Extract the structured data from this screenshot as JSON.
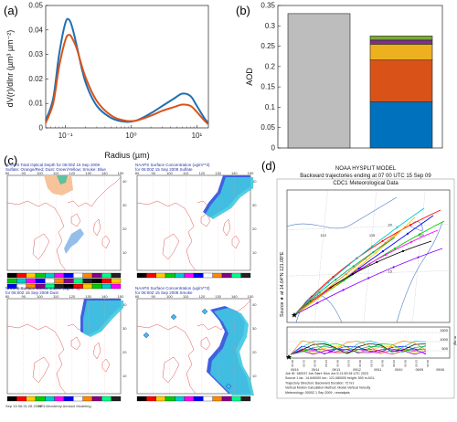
{
  "panel_a": {
    "label": "(a)",
    "chart_data": {
      "type": "line",
      "xlabel": "Radius (µm)",
      "ylabel": "dV(r)/dlnr (µm³ µm⁻²)",
      "x_scale": "log",
      "xlim": [
        0.05,
        15
      ],
      "ylim": [
        0,
        0.05
      ],
      "x_tick_labels": [
        "10⁻¹",
        "10⁰",
        "10¹"
      ],
      "y_tick_labels": [
        "0",
        "0.01",
        "0.02",
        "0.03",
        "0.04",
        "0.05"
      ],
      "series": [
        {
          "color": "#1f6fb4",
          "x": [
            0.05,
            0.065,
            0.08,
            0.1,
            0.115,
            0.13,
            0.15,
            0.2,
            0.3,
            0.5,
            0.8,
            1.2,
            2,
            3,
            4.5,
            6,
            8,
            10,
            13,
            15
          ],
          "y": [
            0.003,
            0.012,
            0.03,
            0.043,
            0.044,
            0.04,
            0.033,
            0.019,
            0.009,
            0.004,
            0.0025,
            0.003,
            0.006,
            0.009,
            0.012,
            0.014,
            0.013,
            0.009,
            0.004,
            0.002
          ]
        },
        {
          "color": "#d9541a",
          "x": [
            0.05,
            0.065,
            0.08,
            0.1,
            0.115,
            0.13,
            0.15,
            0.2,
            0.3,
            0.5,
            0.8,
            1.2,
            2,
            3,
            4.5,
            6,
            8,
            10,
            13,
            15
          ],
          "y": [
            0.002,
            0.01,
            0.025,
            0.036,
            0.038,
            0.036,
            0.032,
            0.021,
            0.011,
            0.005,
            0.003,
            0.003,
            0.005,
            0.007,
            0.0085,
            0.0095,
            0.009,
            0.0065,
            0.003,
            0.0015
          ]
        }
      ]
    }
  },
  "panel_b": {
    "label": "(b)",
    "chart_data": {
      "type": "bar",
      "ylabel": "AOD",
      "ylim": [
        0,
        0.35
      ],
      "y_tick_labels": [
        "0",
        "0.05",
        "0.1",
        "0.15",
        "0.2",
        "0.25",
        "0.3",
        "0.35"
      ],
      "bars": [
        {
          "segments": [
            {
              "value": 0.33,
              "color": "#bdbdbd"
            }
          ]
        },
        {
          "segments": [
            {
              "value": 0.113,
              "color": "#0072bd"
            },
            {
              "value": 0.103,
              "color": "#d95319"
            },
            {
              "value": 0.039,
              "color": "#edb120"
            },
            {
              "value": 0.01,
              "color": "#7e2f8e"
            },
            {
              "value": 0.01,
              "color": "#77ac30"
            }
          ]
        }
      ]
    }
  },
  "panel_c": {
    "label": "(c)",
    "maps": [
      {
        "title1": "NAAPS Total Optical Depth for 06:00Z 15 Sep 2009",
        "title2": "Sulfate: Orange/Red; Dust: Green/Yellow; Smoke: Blue"
      },
      {
        "title1": "NAAPS Surface Concentration (ug/m**3)",
        "title2": "for 06:00Z 15 Sep 2009   Sulfate"
      },
      {
        "title1": "NAAPS Surface Concentration (ug/m**3)",
        "title2": "for 06:00Z 15 Sep 2009   Dust"
      },
      {
        "title1": "NAAPS Surface Concentration (ug/m**3)",
        "title2": "for 06:00Z 15 Sep 2009   Smoke"
      }
    ],
    "lon_labels": [
      "80",
      "90",
      "100",
      "110",
      "120",
      "130",
      "140",
      "150"
    ],
    "lat_labels": [
      "40",
      "30",
      "20",
      "10"
    ],
    "footer_left": "Sep 15 06:31:28 2009",
    "footer_right": "NRL/Monterey Aerosol Modeling"
  },
  "panel_d": {
    "label": "(d)",
    "title1": "NOAA HYSPLIT MODEL",
    "title2": "Backward trajectories ending at 07 00 UTC 15 Sep 09",
    "title3": "CDC1 Meteorological Data",
    "source_label": "Source ★  at   14.64°N  121.08°E",
    "map_lon_labels": [
      "110",
      "115",
      "120"
    ],
    "map_lat_labels": [
      "20",
      "15"
    ],
    "height_axis_label": "m agl",
    "height_ticks": [
      "1500",
      "1000",
      "500"
    ],
    "time_labels": [
      "06 00",
      "18 00",
      "06 00",
      "18 00",
      "06 00",
      "18 00",
      "06 00",
      "18 00",
      "06 00",
      "18 00",
      "06 00",
      "18 00",
      "06 00"
    ],
    "date_labels": [
      "09/15",
      "09/14",
      "09/13",
      "09/12",
      "09/11",
      "09/10",
      "09/09",
      "09/08"
    ],
    "info": [
      "Job ID: 180037                    Job Start: Mon Jun  5 21:50:34 UTC 2023",
      "Source 1      lat.: 14.640000     lon.: 121.080000      height: 500 m AGL",
      "Trajectory Direction: Backward     Duration: 72 hrs",
      "Vertical Motion Calculation Method:      Model Vertical Velocity",
      "Meteorology: 0000Z 1 Sep 2009 - reanalysis"
    ],
    "traj_colors": [
      "#ff0000",
      "#0000ff",
      "#00cc00",
      "#00cccc",
      "#ff00ff",
      "#ffcc00",
      "#000000",
      "#ff8800",
      "#8800ff",
      "#00aa66"
    ]
  }
}
